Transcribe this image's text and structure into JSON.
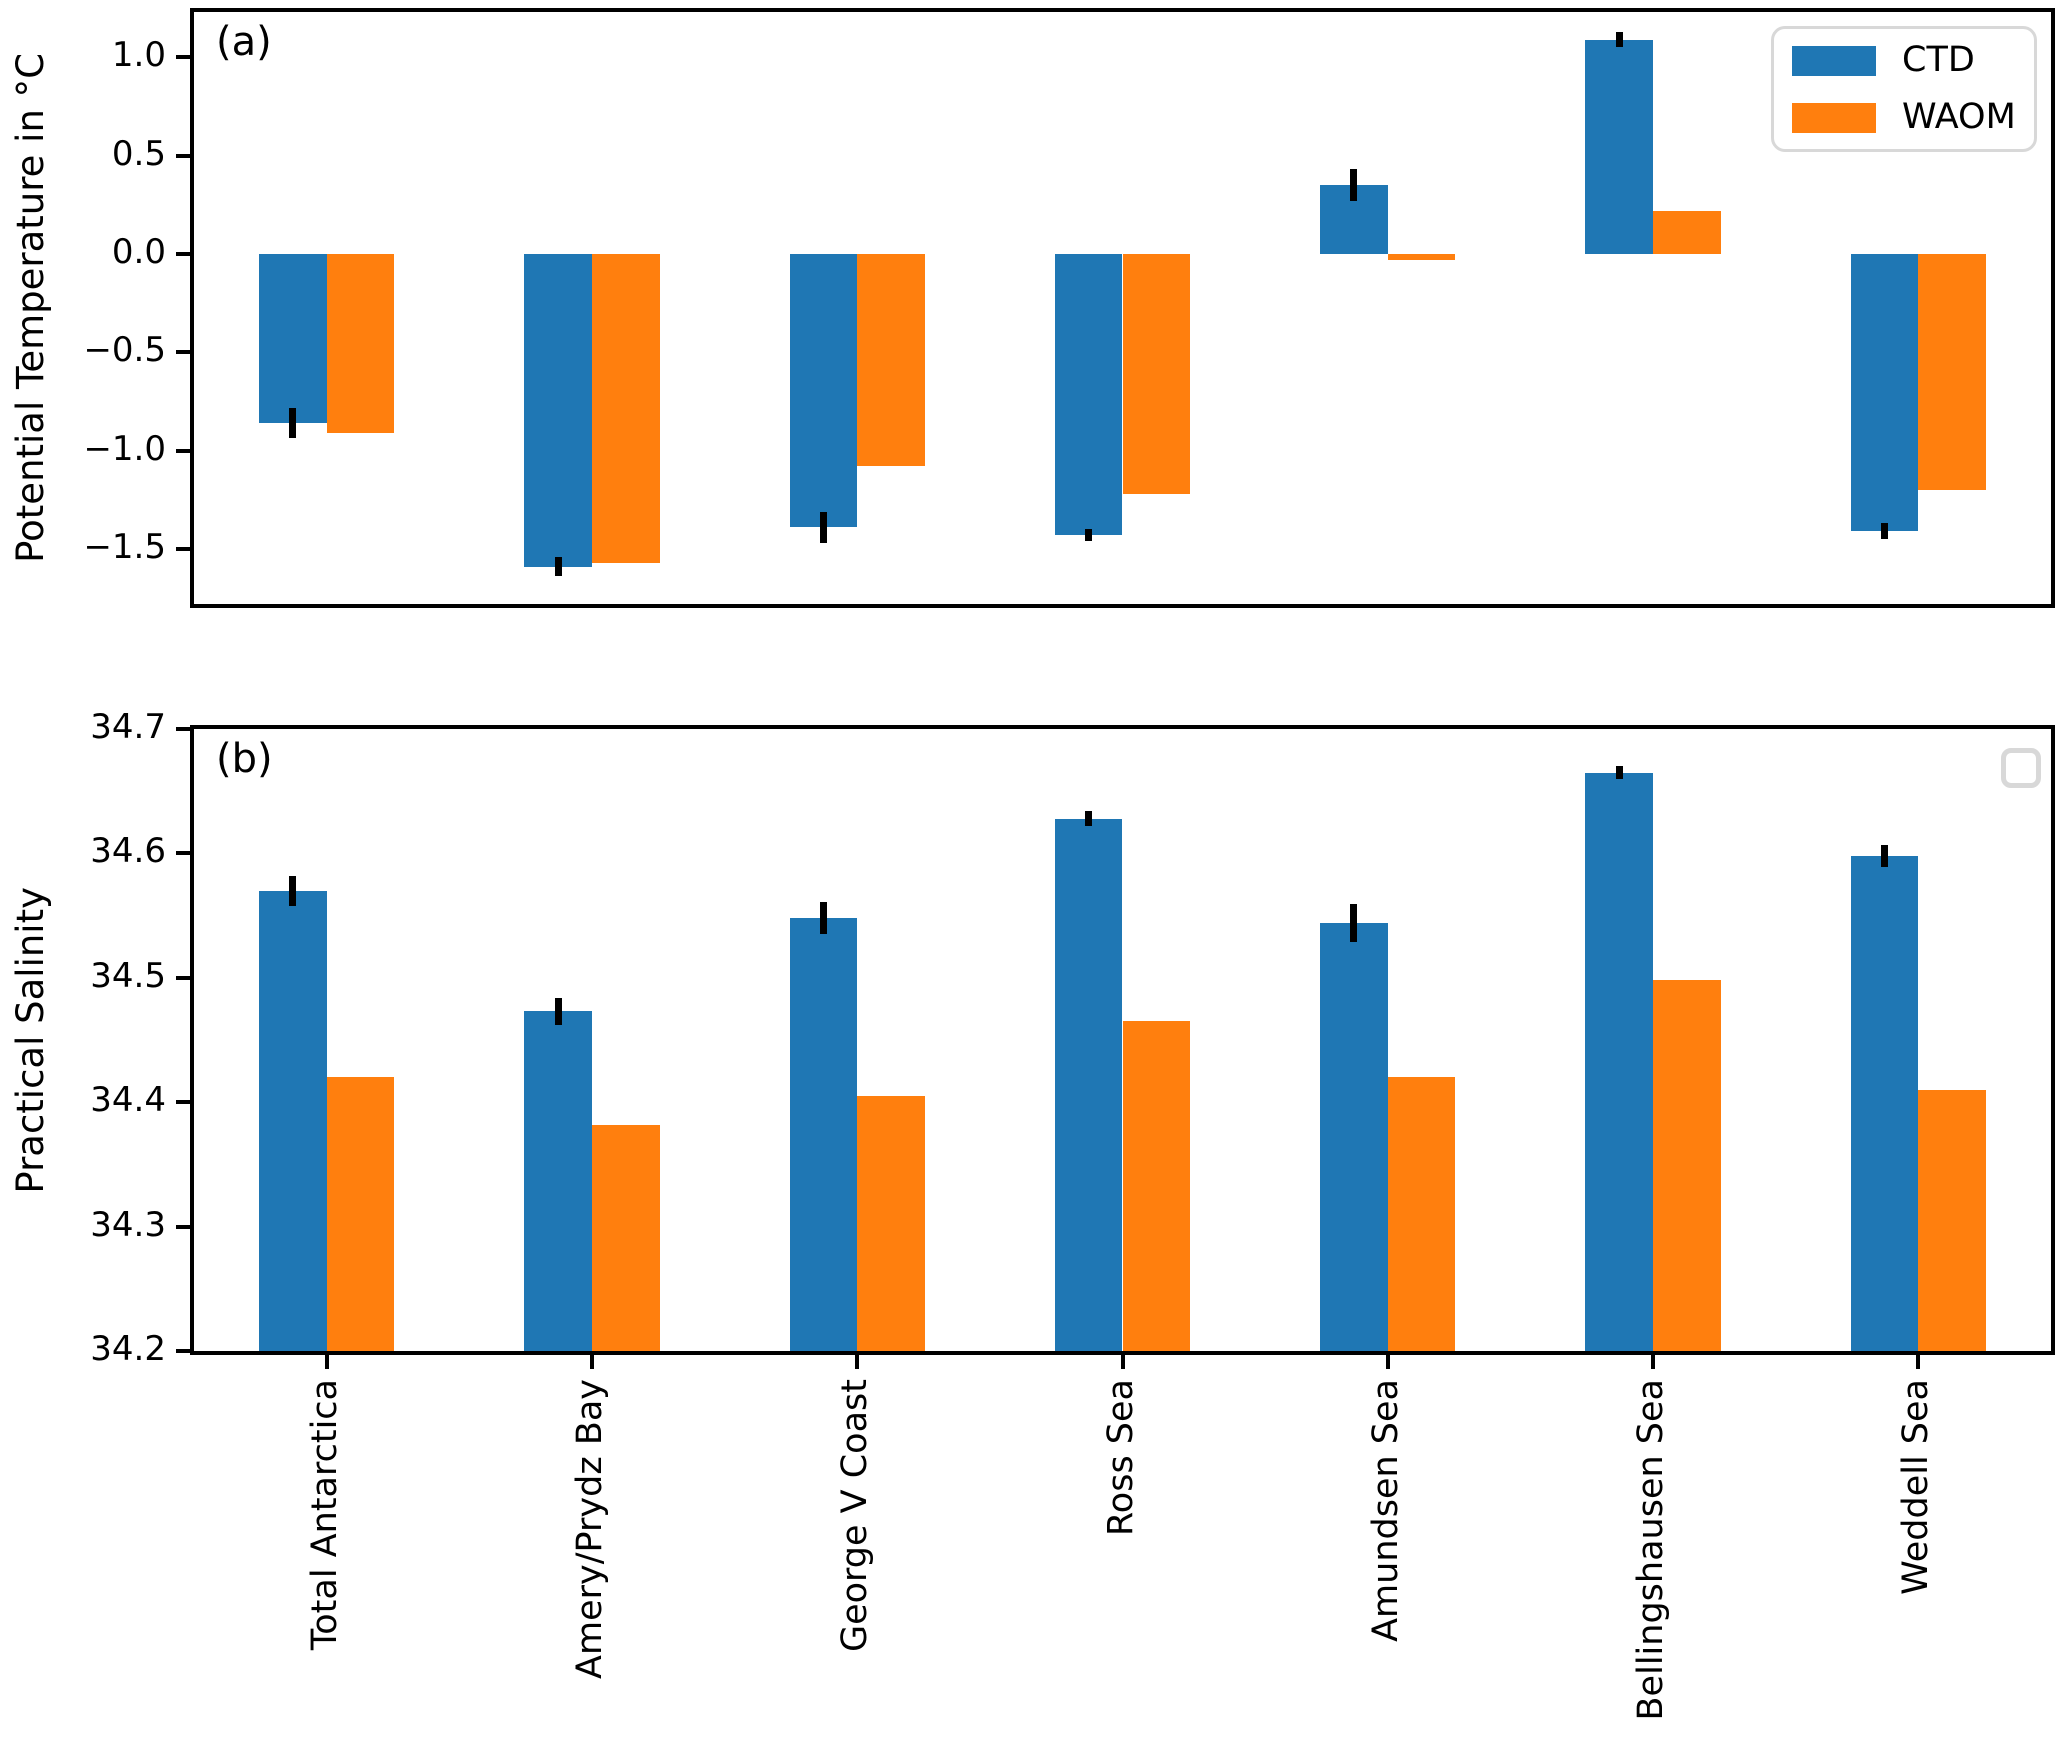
{
  "chart_data": [
    {
      "type": "bar",
      "panel_tag": "(a)",
      "ylabel": "Potential Temperature in °C",
      "categories": [
        "Total Antarctica",
        "Amery/Prydz Bay",
        "George V Coast",
        "Ross Sea",
        "Amundsen Sea",
        "Bellingshausen Sea",
        "Weddell Sea"
      ],
      "series": [
        {
          "name": "CTD",
          "color": "#1f77b4",
          "values": [
            -0.86,
            -1.59,
            -1.39,
            -1.43,
            0.35,
            1.09,
            -1.41
          ],
          "errors": [
            0.075,
            0.05,
            0.08,
            0.03,
            0.08,
            0.04,
            0.04
          ]
        },
        {
          "name": "WAOM",
          "color": "#ff7f0e",
          "values": [
            -0.91,
            -1.57,
            -1.08,
            -1.22,
            -0.03,
            0.22,
            -1.2
          ],
          "errors": null
        }
      ],
      "bar_baseline": 0,
      "ylim": [
        -1.78,
        1.23
      ],
      "yticks": [
        {
          "v": 1.0,
          "t": "1.0"
        },
        {
          "v": 0.5,
          "t": "0.5"
        },
        {
          "v": 0.0,
          "t": "0.0"
        },
        {
          "v": -0.5,
          "t": "−0.5"
        },
        {
          "v": -1.0,
          "t": "−1.0"
        },
        {
          "v": -1.5,
          "t": "−1.5"
        }
      ],
      "grid": false,
      "legend_position": "upper right",
      "legend_entries": [
        "CTD",
        "WAOM"
      ]
    },
    {
      "type": "bar",
      "panel_tag": "(b)",
      "ylabel": "Practical Salinity",
      "categories": [
        "Total Antarctica",
        "Amery/Prydz Bay",
        "George V Coast",
        "Ross Sea",
        "Amundsen Sea",
        "Bellingshausen Sea",
        "Weddell Sea"
      ],
      "series": [
        {
          "name": "CTD",
          "color": "#1f77b4",
          "values": [
            34.57,
            34.473,
            34.548,
            34.628,
            34.544,
            34.665,
            34.598
          ],
          "errors": [
            0.012,
            0.011,
            0.013,
            0.006,
            0.015,
            0.005,
            0.009
          ]
        },
        {
          "name": "WAOM",
          "color": "#ff7f0e",
          "values": [
            34.42,
            34.382,
            34.405,
            34.465,
            34.42,
            34.498,
            34.41
          ],
          "errors": null
        }
      ],
      "bar_baseline": 34.2,
      "ylim": [
        34.2,
        34.7
      ],
      "yticks": [
        {
          "v": 34.7,
          "t": "34.7"
        },
        {
          "v": 34.6,
          "t": "34.6"
        },
        {
          "v": 34.5,
          "t": "34.5"
        },
        {
          "v": 34.4,
          "t": "34.4"
        },
        {
          "v": 34.3,
          "t": "34.3"
        },
        {
          "v": 34.2,
          "t": "34.2"
        }
      ],
      "grid": false,
      "legend_position": "upper right",
      "legend_entries": []
    }
  ],
  "colors": {
    "ctd": "#1f77b4",
    "waom": "#ff7f0e",
    "error_bar": "#000000",
    "spine": "#000000",
    "legend_border": "#d8d8d8",
    "background": "#ffffff"
  }
}
